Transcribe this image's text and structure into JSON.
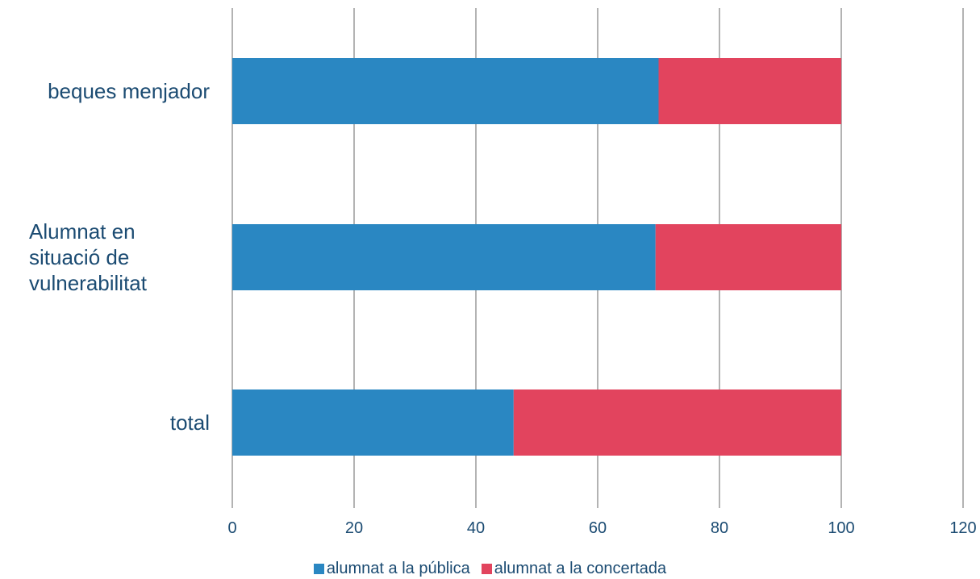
{
  "chart_data": {
    "type": "bar",
    "orientation": "horizontal",
    "stacked": true,
    "categories": [
      "beques menjador",
      "Alumnat en\nsituació de\nvulnerabilitat",
      "total"
    ],
    "series": [
      {
        "name": "alumnat a la pública",
        "color": "#2a87c2",
        "values": [
          70,
          69.5,
          46.2
        ]
      },
      {
        "name": "alumnat a la concertada",
        "color": "#e2445e",
        "values": [
          30,
          30.5,
          53.8
        ]
      }
    ],
    "xlim": [
      0,
      120
    ],
    "xticks": [
      "0",
      "20",
      "40",
      "60",
      "80",
      "100",
      "120"
    ],
    "grid": true,
    "legend_position": "bottom"
  }
}
